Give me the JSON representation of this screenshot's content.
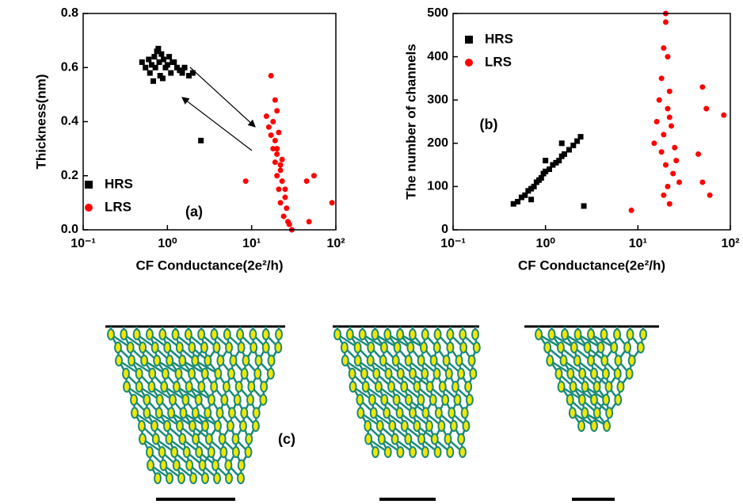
{
  "chart_data": [
    {
      "type": "scatter",
      "annotation": "(a)",
      "x_label": "CF Conductance(2e²/h)",
      "y_label": "Thickness(nm)",
      "xscale": "log",
      "xlim": [
        0.1,
        100
      ],
      "xticks": [
        {
          "value": 0.1,
          "label": "10⁻¹"
        },
        {
          "value": 1,
          "label": "10⁰"
        },
        {
          "value": 10,
          "label": "10¹"
        },
        {
          "value": 100,
          "label": "10²"
        }
      ],
      "ylim": [
        0,
        0.8
      ],
      "yticks": [
        {
          "value": 0,
          "label": "0.0"
        },
        0.2,
        0.4,
        0.6,
        0.8
      ],
      "legend": "lower left",
      "series": [
        {
          "name": "HRS",
          "color": "#000000",
          "marker": "square",
          "x": [
            0.5,
            0.55,
            0.6,
            0.62,
            0.65,
            0.7,
            0.72,
            0.75,
            0.8,
            0.82,
            0.85,
            0.9,
            0.95,
            1.0,
            1.05,
            1.1,
            1.2,
            1.3,
            1.4,
            1.5,
            1.6,
            1.8,
            2.0,
            0.68,
            0.78,
            0.88,
            1.15,
            2.5
          ],
          "values": [
            0.62,
            0.6,
            0.63,
            0.58,
            0.61,
            0.64,
            0.6,
            0.66,
            0.62,
            0.57,
            0.65,
            0.63,
            0.6,
            0.61,
            0.64,
            0.58,
            0.62,
            0.6,
            0.59,
            0.58,
            0.6,
            0.57,
            0.58,
            0.55,
            0.67,
            0.56,
            0.62,
            0.33
          ]
        },
        {
          "name": "LRS",
          "color": "#ff0000",
          "marker": "circle",
          "x": [
            15,
            16,
            17,
            18,
            18,
            19,
            19,
            20,
            20,
            21,
            21,
            22,
            22,
            23,
            24,
            25,
            26,
            27,
            28,
            30,
            17,
            19,
            20,
            23,
            25,
            8.5,
            45,
            55,
            90,
            48,
            20,
            22
          ],
          "values": [
            0.42,
            0.38,
            0.35,
            0.3,
            0.4,
            0.25,
            0.33,
            0.2,
            0.28,
            0.15,
            0.36,
            0.22,
            0.1,
            0.18,
            0.05,
            0.12,
            0.08,
            0.03,
            0.02,
            0.0,
            0.57,
            0.48,
            0.44,
            0.26,
            0.15,
            0.18,
            0.18,
            0.2,
            0.1,
            0.03,
            0.3,
            0.24
          ]
        }
      ]
    },
    {
      "type": "scatter",
      "annotation": "(b)",
      "x_label": "CF Conductance(2e²/h)",
      "y_label": "The number of channels",
      "xscale": "log",
      "xlim": [
        0.1,
        100
      ],
      "xticks": [
        {
          "value": 0.1,
          "label": "10⁻¹"
        },
        {
          "value": 1,
          "label": "10⁰"
        },
        {
          "value": 10,
          "label": "10¹"
        },
        {
          "value": 100,
          "label": "10²"
        }
      ],
      "ylim": [
        0,
        500
      ],
      "yticks": [
        0,
        100,
        200,
        300,
        400,
        500
      ],
      "legend": "upper left",
      "series": [
        {
          "name": "HRS",
          "color": "#000000",
          "marker": "square",
          "x": [
            0.45,
            0.5,
            0.55,
            0.6,
            0.65,
            0.7,
            0.75,
            0.8,
            0.85,
            0.9,
            0.95,
            1.0,
            1.1,
            1.2,
            1.3,
            1.4,
            1.5,
            1.6,
            1.8,
            2.0,
            2.2,
            2.4,
            0.7,
            1.0,
            1.5,
            2.6
          ],
          "values": [
            60,
            65,
            75,
            80,
            90,
            95,
            100,
            110,
            115,
            120,
            130,
            135,
            140,
            150,
            155,
            160,
            170,
            175,
            185,
            195,
            205,
            215,
            70,
            160,
            200,
            55
          ]
        },
        {
          "name": "LRS",
          "color": "#ff0000",
          "marker": "circle",
          "x": [
            15,
            16,
            17,
            18,
            18,
            19,
            19,
            20,
            20,
            21,
            21,
            22,
            22,
            23,
            24,
            25,
            26,
            28,
            20,
            21,
            19,
            22,
            8.5,
            50,
            55,
            85,
            50,
            45,
            60
          ],
          "values": [
            200,
            250,
            300,
            180,
            350,
            220,
            420,
            150,
            480,
            100,
            280,
            60,
            320,
            240,
            130,
            190,
            160,
            110,
            500,
            400,
            80,
            260,
            45,
            330,
            280,
            265,
            110,
            175,
            80
          ]
        }
      ]
    }
  ],
  "diagram": {
    "label": "(c)"
  }
}
